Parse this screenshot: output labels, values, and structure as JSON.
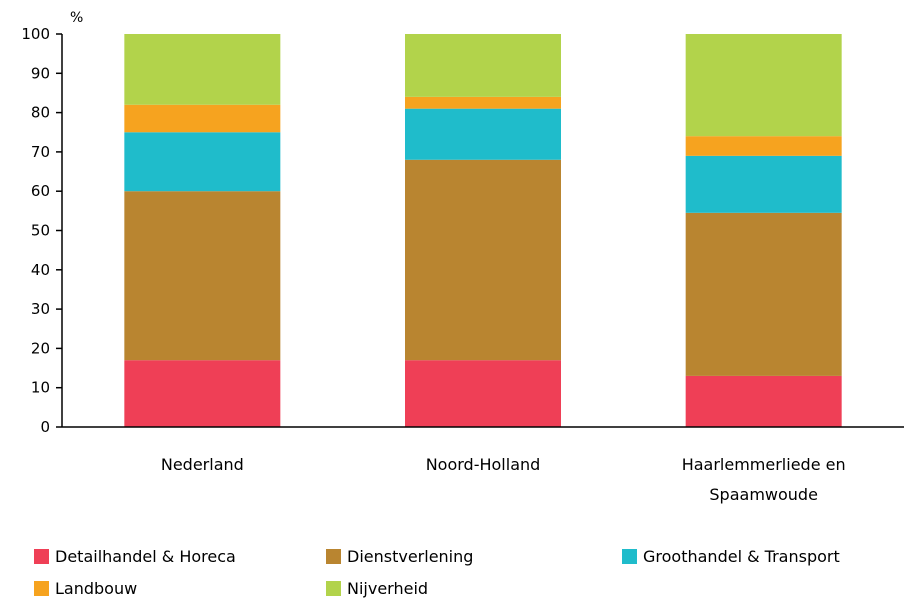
{
  "chart_data": {
    "type": "bar",
    "stacked": true,
    "unit_label": "%",
    "ylim": [
      0,
      100
    ],
    "y_ticks": [
      "0",
      "10",
      "20",
      "30",
      "40",
      "50",
      "60",
      "70",
      "80",
      "90",
      "100"
    ],
    "categories": [
      "Nederland",
      "Noord-Holland",
      "Haarlemmerliede en Spaamwoude"
    ],
    "category_lines": [
      [
        "Nederland"
      ],
      [
        "Noord-Holland"
      ],
      [
        "Haarlemmerliede en",
        "Spaamwoude"
      ]
    ],
    "series": [
      {
        "name": "Detailhandel & Horeca",
        "color": "#ef3f56",
        "values": [
          17,
          17,
          13
        ]
      },
      {
        "name": "Dienstverlening",
        "color": "#b98530",
        "values": [
          43,
          51,
          41.5
        ]
      },
      {
        "name": "Groothandel & Transport",
        "color": "#1fbccb",
        "values": [
          15,
          13,
          14.5
        ]
      },
      {
        "name": "Landbouw",
        "color": "#f6a31f",
        "values": [
          7,
          3,
          5
        ]
      },
      {
        "name": "Nijverheid",
        "color": "#b2d34b",
        "values": [
          18,
          16,
          26
        ]
      }
    ],
    "legend_position": "bottom",
    "grid": false
  }
}
